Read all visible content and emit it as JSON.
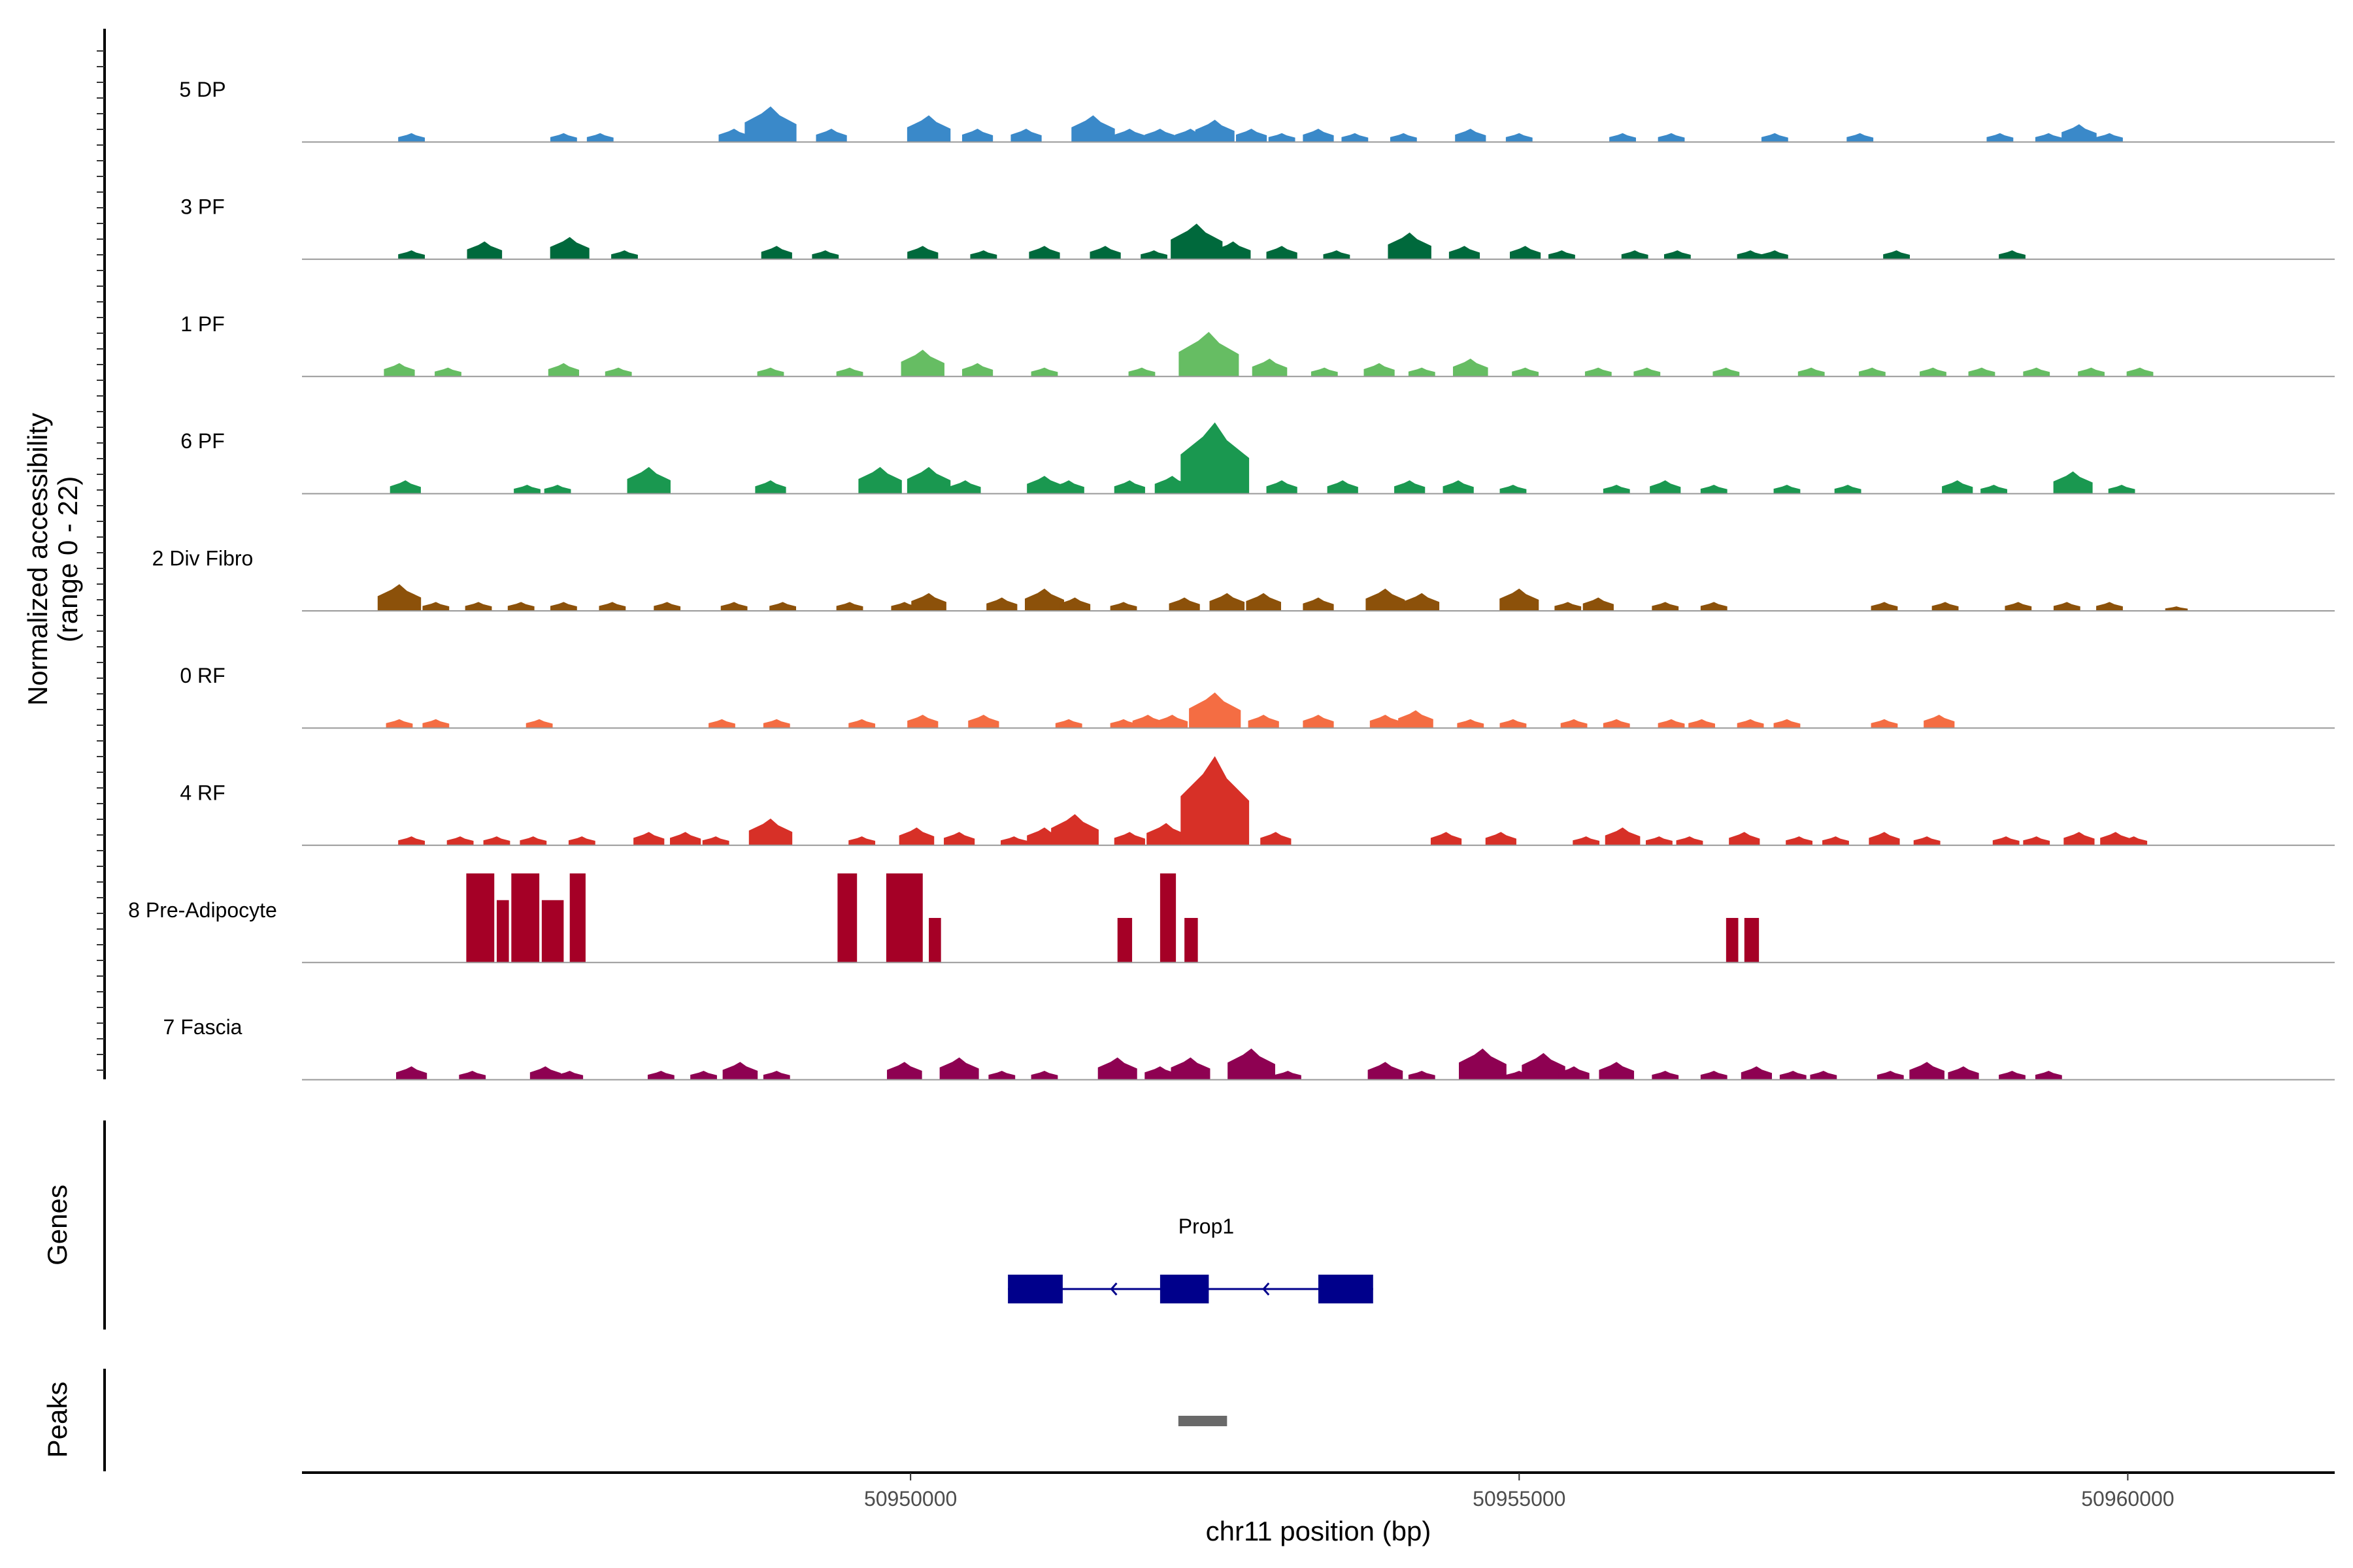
{
  "chart_data": {
    "type": "area",
    "title": "",
    "chromosome": "chr11",
    "xlabel": "chr11 position (bp)",
    "ylabel_line1": "Normalized accessibility",
    "ylabel_line2": "(range 0 - 22)",
    "y_range": [
      0,
      22
    ],
    "x_range": [
      50945000,
      50961700
    ],
    "x_ticks": [
      50950000,
      50955000,
      50960000
    ],
    "x_tick_labels": [
      "50950000",
      "50955000",
      "50960000"
    ],
    "tracks": [
      {
        "name": "5 DP",
        "color": "#3A89C9",
        "peaks": [
          [
            50945900,
            2
          ],
          [
            50947150,
            2
          ],
          [
            50947450,
            2
          ],
          [
            50948550,
            3
          ],
          [
            50948850,
            8
          ],
          [
            50949350,
            3
          ],
          [
            50950150,
            6
          ],
          [
            50950550,
            3
          ],
          [
            50950950,
            3
          ],
          [
            50951500,
            6
          ],
          [
            50951800,
            3
          ],
          [
            50952050,
            3
          ],
          [
            50952300,
            3
          ],
          [
            50952500,
            5
          ],
          [
            50952800,
            3
          ],
          [
            50953050,
            2
          ],
          [
            50953350,
            3
          ],
          [
            50953650,
            2
          ],
          [
            50954050,
            2
          ],
          [
            50954600,
            3
          ],
          [
            50955000,
            2
          ],
          [
            50955850,
            2
          ],
          [
            50956250,
            2
          ],
          [
            50957100,
            2
          ],
          [
            50957800,
            2
          ],
          [
            50958950,
            2
          ],
          [
            50959350,
            2
          ],
          [
            50959600,
            4
          ],
          [
            50959850,
            2
          ]
        ]
      },
      {
        "name": "3 PF",
        "color": "#00693C",
        "peaks": [
          [
            50945900,
            2
          ],
          [
            50946500,
            4
          ],
          [
            50947200,
            5
          ],
          [
            50947650,
            2
          ],
          [
            50948900,
            3
          ],
          [
            50949300,
            2
          ],
          [
            50950100,
            3
          ],
          [
            50950600,
            2
          ],
          [
            50951100,
            3
          ],
          [
            50951600,
            3
          ],
          [
            50952000,
            2
          ],
          [
            50952350,
            8
          ],
          [
            50952650,
            4
          ],
          [
            50953050,
            3
          ],
          [
            50953500,
            2
          ],
          [
            50954100,
            6
          ],
          [
            50954550,
            3
          ],
          [
            50955050,
            3
          ],
          [
            50955350,
            2
          ],
          [
            50955950,
            2
          ],
          [
            50956300,
            2
          ],
          [
            50956900,
            2
          ],
          [
            50957100,
            2
          ],
          [
            50958100,
            2
          ],
          [
            50959050,
            2
          ]
        ]
      },
      {
        "name": "1 PF",
        "color": "#66BD63",
        "peaks": [
          [
            50945800,
            3
          ],
          [
            50946200,
            2
          ],
          [
            50947150,
            3
          ],
          [
            50947600,
            2
          ],
          [
            50948850,
            2
          ],
          [
            50949500,
            2
          ],
          [
            50950100,
            6
          ],
          [
            50950550,
            3
          ],
          [
            50951100,
            2
          ],
          [
            50951900,
            2
          ],
          [
            50952450,
            10
          ],
          [
            50952950,
            4
          ],
          [
            50953400,
            2
          ],
          [
            50953850,
            3
          ],
          [
            50954200,
            2
          ],
          [
            50954600,
            4
          ],
          [
            50955050,
            2
          ],
          [
            50955650,
            2
          ],
          [
            50956050,
            2
          ],
          [
            50956700,
            2
          ],
          [
            50957400,
            2
          ],
          [
            50957900,
            2
          ],
          [
            50958400,
            2
          ],
          [
            50958800,
            2
          ],
          [
            50959250,
            2
          ],
          [
            50959700,
            2
          ],
          [
            50960100,
            2
          ]
        ]
      },
      {
        "name": "6 PF",
        "color": "#1A9850",
        "peaks": [
          [
            50945850,
            3
          ],
          [
            50946850,
            2
          ],
          [
            50947100,
            2
          ],
          [
            50947850,
            6
          ],
          [
            50948850,
            3
          ],
          [
            50949750,
            6
          ],
          [
            50950150,
            6
          ],
          [
            50950450,
            3
          ],
          [
            50951100,
            4
          ],
          [
            50951300,
            3
          ],
          [
            50951800,
            3
          ],
          [
            50952150,
            4
          ],
          [
            50952500,
            16
          ],
          [
            50953050,
            3
          ],
          [
            50953550,
            3
          ],
          [
            50954100,
            3
          ],
          [
            50954500,
            3
          ],
          [
            50954950,
            2
          ],
          [
            50955800,
            2
          ],
          [
            50956200,
            3
          ],
          [
            50956600,
            2
          ],
          [
            50957200,
            2
          ],
          [
            50957700,
            2
          ],
          [
            50958600,
            3
          ],
          [
            50958900,
            2
          ],
          [
            50959550,
            5
          ],
          [
            50959950,
            2
          ]
        ]
      },
      {
        "name": "2 Div Fibro",
        "color": "#8C510A",
        "peaks": [
          [
            50945800,
            6
          ],
          [
            50946100,
            2
          ],
          [
            50946450,
            2
          ],
          [
            50946800,
            2
          ],
          [
            50947150,
            2
          ],
          [
            50947550,
            2
          ],
          [
            50948000,
            2
          ],
          [
            50948550,
            2
          ],
          [
            50948950,
            2
          ],
          [
            50949500,
            2
          ],
          [
            50949950,
            2
          ],
          [
            50950150,
            4
          ],
          [
            50950750,
            3
          ],
          [
            50951100,
            5
          ],
          [
            50951350,
            3
          ],
          [
            50951750,
            2
          ],
          [
            50952250,
            3
          ],
          [
            50952600,
            4
          ],
          [
            50952900,
            4
          ],
          [
            50953350,
            3
          ],
          [
            50953900,
            5
          ],
          [
            50954200,
            4
          ],
          [
            50955000,
            5
          ],
          [
            50955400,
            2
          ],
          [
            50955650,
            3
          ],
          [
            50956200,
            2
          ],
          [
            50956600,
            2
          ],
          [
            50958000,
            2
          ],
          [
            50958500,
            2
          ],
          [
            50959100,
            2
          ],
          [
            50959500,
            2
          ],
          [
            50959850,
            2
          ],
          [
            50960400,
            1
          ]
        ]
      },
      {
        "name": "0 RF",
        "color": "#F46D43",
        "peaks": [
          [
            50945800,
            2
          ],
          [
            50946100,
            2
          ],
          [
            50946950,
            2
          ],
          [
            50948450,
            2
          ],
          [
            50948900,
            2
          ],
          [
            50949600,
            2
          ],
          [
            50950100,
            3
          ],
          [
            50950600,
            3
          ],
          [
            50951300,
            2
          ],
          [
            50951750,
            2
          ],
          [
            50951950,
            3
          ],
          [
            50952150,
            3
          ],
          [
            50952500,
            8
          ],
          [
            50952900,
            3
          ],
          [
            50953350,
            3
          ],
          [
            50953900,
            3
          ],
          [
            50954150,
            4
          ],
          [
            50954600,
            2
          ],
          [
            50954950,
            2
          ],
          [
            50955450,
            2
          ],
          [
            50955800,
            2
          ],
          [
            50956250,
            2
          ],
          [
            50956500,
            2
          ],
          [
            50956900,
            2
          ],
          [
            50957200,
            2
          ],
          [
            50958000,
            2
          ],
          [
            50958450,
            3
          ]
        ]
      },
      {
        "name": "4 RF",
        "color": "#D73027",
        "peaks": [
          [
            50945900,
            2
          ],
          [
            50946300,
            2
          ],
          [
            50946600,
            2
          ],
          [
            50946900,
            2
          ],
          [
            50947300,
            2
          ],
          [
            50947850,
            3
          ],
          [
            50948150,
            3
          ],
          [
            50948400,
            2
          ],
          [
            50948850,
            6
          ],
          [
            50949600,
            2
          ],
          [
            50950050,
            4
          ],
          [
            50950400,
            3
          ],
          [
            50950850,
            2
          ],
          [
            50951100,
            4
          ],
          [
            50951350,
            7
          ],
          [
            50951800,
            3
          ],
          [
            50952050,
            2
          ],
          [
            50952100,
            5
          ],
          [
            50952500,
            20
          ],
          [
            50953000,
            3
          ],
          [
            50954400,
            3
          ],
          [
            50954850,
            3
          ],
          [
            50955550,
            2
          ],
          [
            50955850,
            4
          ],
          [
            50956150,
            2
          ],
          [
            50956400,
            2
          ],
          [
            50956850,
            3
          ],
          [
            50957300,
            2
          ],
          [
            50957600,
            2
          ],
          [
            50958000,
            3
          ],
          [
            50958350,
            2
          ],
          [
            50959000,
            2
          ],
          [
            50959250,
            2
          ],
          [
            50959600,
            3
          ],
          [
            50959900,
            3
          ],
          [
            50960050,
            2
          ]
        ]
      },
      {
        "name": "8 Pre-Adipocyte",
        "color": "#A50026",
        "blocks": [
          [
            50946350,
            50946580,
            20
          ],
          [
            50946600,
            50946700,
            14
          ],
          [
            50946720,
            50946950,
            20
          ],
          [
            50946970,
            50947150,
            14
          ],
          [
            50947200,
            50947330,
            20
          ],
          [
            50949400,
            50949560,
            20
          ],
          [
            50949800,
            50950100,
            20
          ],
          [
            50950150,
            50950250,
            10
          ],
          [
            50951700,
            50951820,
            10
          ],
          [
            50952050,
            50952180,
            20
          ],
          [
            50952250,
            50952360,
            10
          ],
          [
            50956700,
            50956800,
            10
          ],
          [
            50956850,
            50956970,
            10
          ]
        ]
      },
      {
        "name": "7 Fascia",
        "color": "#8E0152",
        "peaks": [
          [
            50945900,
            3
          ],
          [
            50946400,
            2
          ],
          [
            50947000,
            3
          ],
          [
            50947200,
            2
          ],
          [
            50947950,
            2
          ],
          [
            50948300,
            2
          ],
          [
            50948600,
            4
          ],
          [
            50948900,
            2
          ],
          [
            50949950,
            4
          ],
          [
            50950400,
            5
          ],
          [
            50950750,
            2
          ],
          [
            50951100,
            2
          ],
          [
            50951700,
            5
          ],
          [
            50952050,
            3
          ],
          [
            50952300,
            5
          ],
          [
            50952800,
            7
          ],
          [
            50953100,
            2
          ],
          [
            50953900,
            4
          ],
          [
            50954200,
            2
          ],
          [
            50954700,
            7
          ],
          [
            50955000,
            2
          ],
          [
            50955200,
            6
          ],
          [
            50955450,
            3
          ],
          [
            50955800,
            4
          ],
          [
            50956200,
            2
          ],
          [
            50956600,
            2
          ],
          [
            50956950,
            3
          ],
          [
            50957250,
            2
          ],
          [
            50957500,
            2
          ],
          [
            50958050,
            2
          ],
          [
            50958350,
            4
          ],
          [
            50958650,
            3
          ],
          [
            50959050,
            2
          ],
          [
            50959350,
            2
          ]
        ]
      }
    ],
    "genes": [
      {
        "name": "Prop1",
        "strand": "-",
        "start": 50950800,
        "end": 50953800,
        "exons": [
          [
            50950800,
            50951250
          ],
          [
            50952050,
            50952450
          ],
          [
            50953350,
            50953800
          ]
        ]
      }
    ],
    "peaks_track": [
      [
        50952200,
        50952600
      ]
    ],
    "panel_labels": {
      "genes": "Genes",
      "peaks": "Peaks"
    },
    "colors": {
      "baseline": "#999999",
      "gene": "#00008B",
      "peak_bar": "#696969"
    }
  }
}
